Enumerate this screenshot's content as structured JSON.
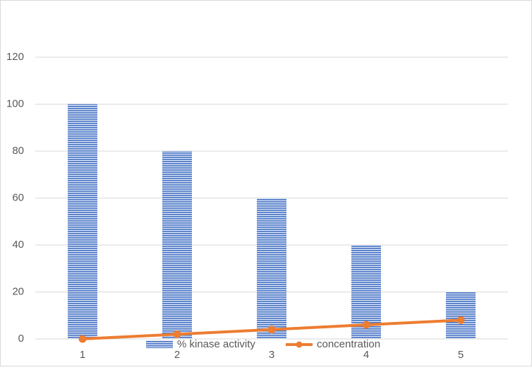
{
  "chart_data": {
    "type": "bar_line",
    "categories": [
      "1",
      "2",
      "3",
      "4",
      "5"
    ],
    "series": [
      {
        "name": "% kinase activity",
        "type": "bar",
        "color": "#4472c4",
        "values": [
          100,
          80,
          60,
          40,
          20
        ]
      },
      {
        "name": "concentration",
        "type": "line",
        "color": "#ed7d31",
        "values": [
          0,
          2,
          4,
          6,
          8
        ]
      }
    ],
    "ylim": [
      0,
      120
    ],
    "yticks": [
      0,
      20,
      40,
      60,
      80,
      100,
      120
    ],
    "grid": true,
    "legend": "bottom"
  }
}
